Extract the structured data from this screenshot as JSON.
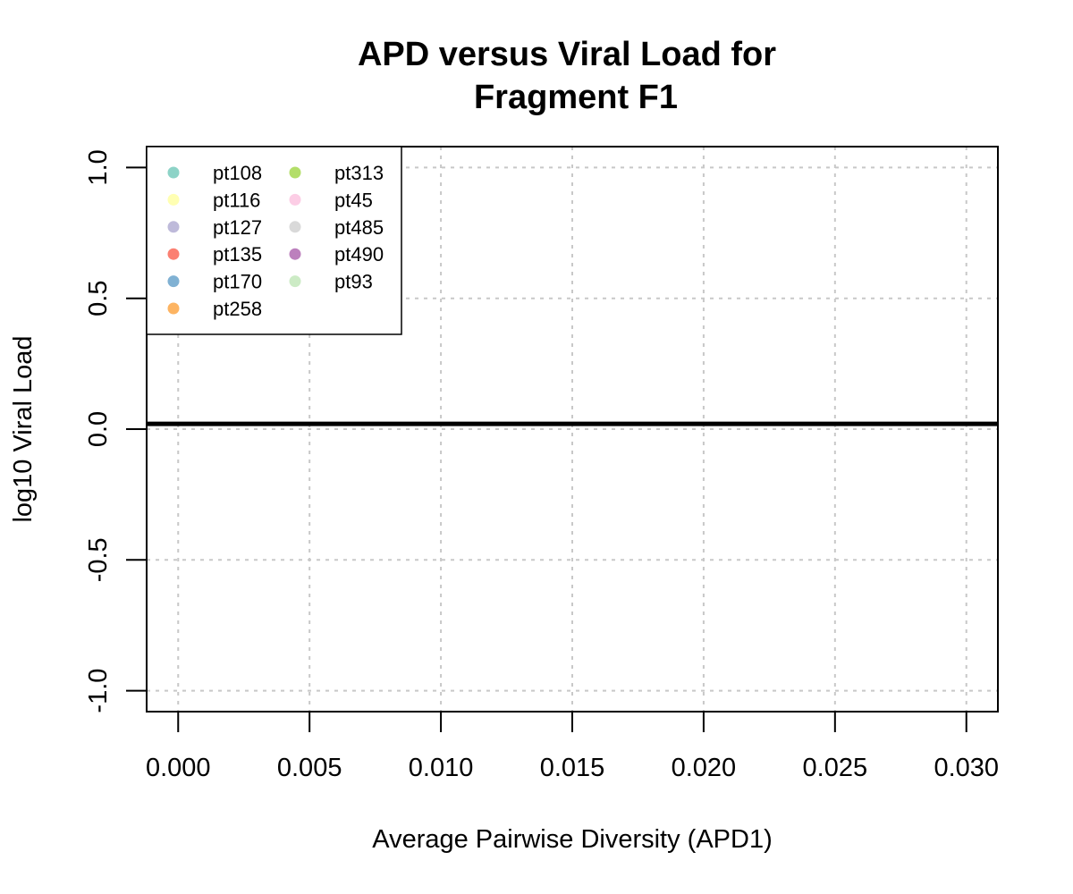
{
  "chart_data": {
    "type": "scatter",
    "title_line1": "APD versus Viral Load for",
    "title_line2": "Fragment F1",
    "xlabel": "Average Pairwise Diversity (APD1)",
    "ylabel": "log10 Viral Load",
    "xlim": [
      -0.0012,
      0.0312
    ],
    "ylim": [
      -1.08,
      1.08
    ],
    "x_ticks": [
      0.0,
      0.005,
      0.01,
      0.015,
      0.02,
      0.025,
      0.03
    ],
    "x_tick_labels": [
      "0.000",
      "0.005",
      "0.010",
      "0.015",
      "0.020",
      "0.025",
      "0.030"
    ],
    "y_ticks": [
      -1.0,
      -0.5,
      0.0,
      0.5,
      1.0
    ],
    "y_tick_labels": [
      "-1.0",
      "-0.5",
      "0.0",
      "0.5",
      "1.0"
    ],
    "grid": true,
    "legend_position": "top-left",
    "series": [
      {
        "name": "pt108",
        "color": "#8DD3C7",
        "points": []
      },
      {
        "name": "pt116",
        "color": "#FFFFB3",
        "points": []
      },
      {
        "name": "pt127",
        "color": "#BEBADA",
        "points": []
      },
      {
        "name": "pt135",
        "color": "#FB8072",
        "points": []
      },
      {
        "name": "pt170",
        "color": "#80B1D3",
        "points": []
      },
      {
        "name": "pt258",
        "color": "#FDB462",
        "points": []
      },
      {
        "name": "pt313",
        "color": "#B3DE69",
        "points": []
      },
      {
        "name": "pt45",
        "color": "#FCCDE5",
        "points": []
      },
      {
        "name": "pt485",
        "color": "#D9D9D9",
        "points": []
      },
      {
        "name": "pt490",
        "color": "#BC80BD",
        "points": []
      },
      {
        "name": "pt93",
        "color": "#CCEBC5",
        "points": []
      }
    ],
    "reference_line": {
      "type": "horizontal",
      "y": 0.02,
      "color": "#000000"
    }
  }
}
